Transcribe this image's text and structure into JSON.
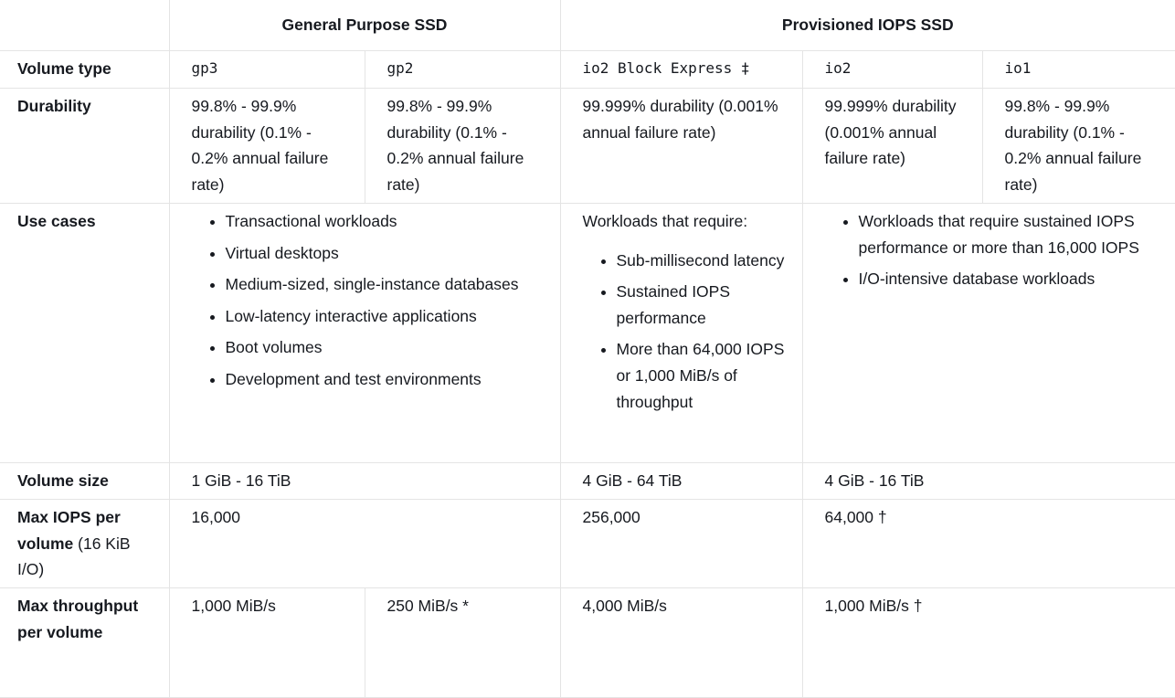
{
  "table": {
    "header": [
      "General Purpose SSD",
      "Provisioned IOPS SSD"
    ],
    "volume_type": {
      "label": "Volume type",
      "cells": [
        "gp3",
        "gp2",
        "io2 Block Express ‡",
        "io2",
        "io1"
      ]
    },
    "durability": {
      "label": "Durability",
      "cells": [
        "99.8% - 99.9% durability (0.1% - 0.2% annual failure rate)",
        "99.8% - 99.9% durability (0.1% - 0.2% annual failure rate)",
        "99.999% durability (0.001% annual failure rate)",
        "99.999% durability (0.001% annual failure rate)",
        "99.8% - 99.9% durability (0.1% - 0.2% annual failure rate)"
      ]
    },
    "use_cases": {
      "label": "Use cases",
      "general_purpose": [
        "Transactional workloads",
        "Virtual desktops",
        "Medium-sized, single-instance databases",
        "Low-latency interactive applications",
        "Boot volumes",
        "Development and test environments"
      ],
      "io2_block_express": {
        "intro": "Workloads that require:",
        "items": [
          "Sub-millisecond latency",
          "Sustained IOPS performance",
          "More than 64,000 IOPS or 1,000 MiB/s of throughput"
        ]
      },
      "io2_io1": [
        "Workloads that require sustained IOPS performance or more than 16,000 IOPS",
        "I/O-intensive database workloads"
      ]
    },
    "volume_size": {
      "label": "Volume size",
      "cells": [
        "1 GiB - 16 TiB",
        "4 GiB - 64 TiB",
        "4 GiB - 16 TiB"
      ]
    },
    "max_iops": {
      "label": "Max IOPS per volume",
      "label_note": "(16 KiB I/O)",
      "cells": [
        "16,000",
        "256,000",
        "64,000 †"
      ]
    },
    "max_throughput": {
      "label": "Max throughput per volume",
      "cells": [
        "1,000 MiB/s",
        "250 MiB/s *",
        "4,000 MiB/s",
        "1,000 MiB/s †"
      ]
    }
  }
}
